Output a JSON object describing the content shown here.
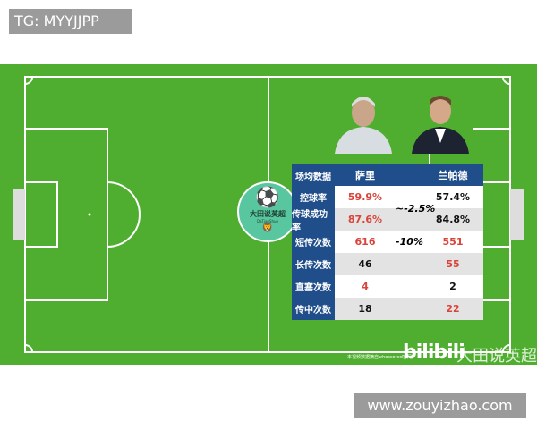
{
  "watermark_top": "TG: MYYJJPP",
  "watermark_bottom": "www.zouyizhao.com",
  "badge": {
    "name": "大田说英超",
    "sub": "DaTianShuo"
  },
  "table": {
    "header": [
      "场均数据",
      "萨里",
      "兰帕德"
    ],
    "rows": [
      {
        "label": "控球率",
        "a": "59.9%",
        "b": "57.4%",
        "a_color": "red",
        "b_color": "black"
      },
      {
        "label": "传球成功率",
        "a": "87.6%",
        "b": "84.8%",
        "a_color": "red",
        "b_color": "black"
      },
      {
        "label": "短传次数",
        "a": "616",
        "b": "551",
        "a_color": "red",
        "b_color": "red"
      },
      {
        "label": "长传次数",
        "a": "46",
        "b": "55",
        "a_color": "black",
        "b_color": "red"
      },
      {
        "label": "直塞次数",
        "a": "4",
        "b": "2",
        "a_color": "red",
        "b_color": "black"
      },
      {
        "label": "传中次数",
        "a": "18",
        "b": "22",
        "a_color": "black",
        "b_color": "red"
      }
    ],
    "diff1": "~-2.5%",
    "diff2": "-10%"
  },
  "footer": {
    "source": "本视频数据摘自whoscored官网",
    "bilibili": "bilibili",
    "channel": "大田说英超"
  },
  "colors": {
    "pitch": "#4fae2f",
    "header": "#1f4e8a",
    "highlight": "#d9443a"
  }
}
